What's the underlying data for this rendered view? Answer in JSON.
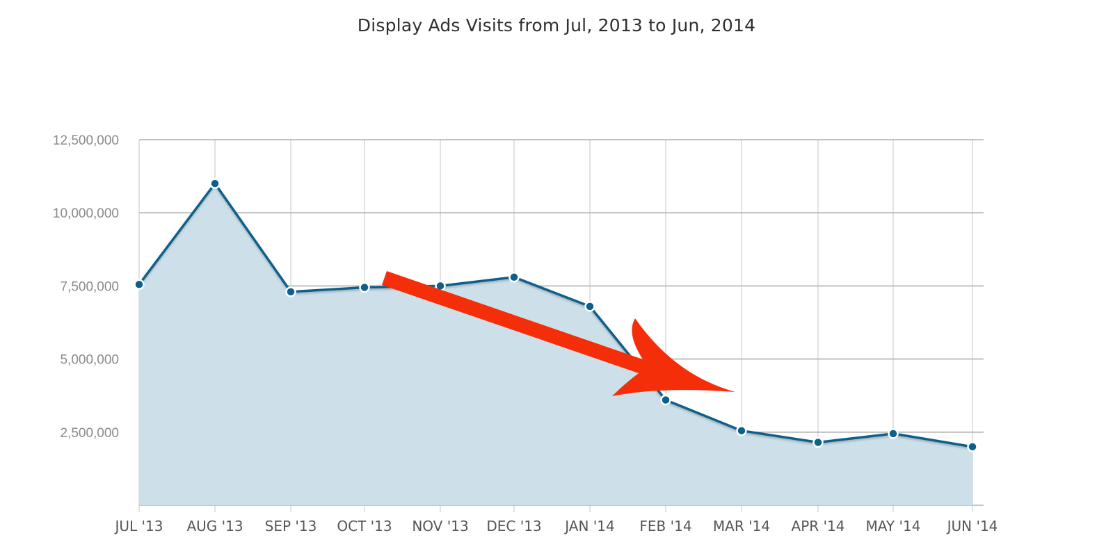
{
  "chart_data": {
    "type": "area",
    "title": "Display Ads Visits from Jul, 2013 to Jun, 2014",
    "xlabel": "",
    "ylabel": "",
    "categories": [
      "JUL '13",
      "AUG '13",
      "SEP '13",
      "OCT '13",
      "NOV '13",
      "DEC '13",
      "JAN '14",
      "FEB '14",
      "MAR '14",
      "APR '14",
      "MAY '14",
      "JUN '14"
    ],
    "values": [
      7550000,
      11000000,
      7300000,
      7450000,
      7500000,
      7800000,
      6800000,
      3600000,
      2550000,
      2150000,
      2450000,
      2000000
    ],
    "ylim": [
      0,
      12500000
    ],
    "yticks": [
      2500000,
      5000000,
      7500000,
      10000000,
      12500000
    ],
    "ytick_labels": [
      "2,500,000",
      "5,000,000",
      "7,500,000",
      "10,000,000",
      "12,500,000"
    ],
    "grid": true,
    "legend": "none",
    "annotation": "red arrow pointing downward trend from Oct '13 to Feb '14",
    "colors": {
      "line": "#0d5f8c",
      "fill": "#cde0ea",
      "marker": "#0d5f8c",
      "marker_stroke": "#ffffff",
      "arrow": "#f52e0a"
    }
  }
}
